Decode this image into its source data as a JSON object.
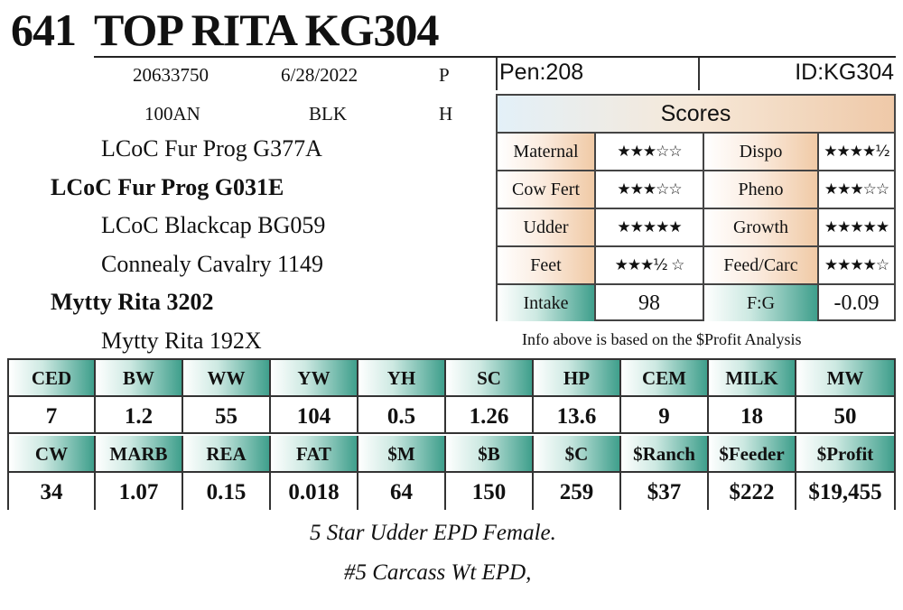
{
  "header": {
    "lot_number": "641",
    "name": "TOP RITA KG304"
  },
  "info": {
    "reg_number": "20633750",
    "birth_date": "6/28/2022",
    "polled": "P",
    "tattoo": "100AN",
    "color": "BLK",
    "sex": "H"
  },
  "pedigree": [
    {
      "text": "LCoC Fur Prog G377A",
      "bold": false
    },
    {
      "text": "LCoC Fur Prog G031E",
      "bold": true
    },
    {
      "text": "LCoC Blackcap BG059",
      "bold": false
    },
    {
      "text": "Connealy Cavalry 1149",
      "bold": false
    },
    {
      "text": "Mytty Rita 3202",
      "bold": true
    },
    {
      "text": "Mytty Rita 192X",
      "bold": false
    }
  ],
  "pen": "Pen:208",
  "id_label": "ID:KG304",
  "scores": {
    "title": "Scores",
    "rows": [
      {
        "label1": "Maternal",
        "stars1": "★★★☆☆",
        "label2": "Dispo",
        "stars2": "★★★★½"
      },
      {
        "label1": "Cow Fert",
        "stars1": "★★★☆☆",
        "label2": "Pheno",
        "stars2": "★★★☆☆"
      },
      {
        "label1": "Udder",
        "stars1": "★★★★★",
        "label2": "Growth",
        "stars2": "★★★★★"
      },
      {
        "label1": "Feet",
        "stars1": "★★★½ ☆",
        "label2": "Feed/Carc",
        "stars2": "★★★★☆"
      }
    ],
    "intake_label": "Intake",
    "intake_value": "98",
    "fg_label": "F:G",
    "fg_value": "-0.09"
  },
  "analysis_note": "Info above is based on the $Profit Analysis",
  "epd": {
    "row1_headers": [
      "CED",
      "BW",
      "WW",
      "YW",
      "YH",
      "SC",
      "HP",
      "CEM",
      "MILK",
      "MW"
    ],
    "row1_values": [
      "7",
      "1.2",
      "55",
      "104",
      "0.5",
      "1.26",
      "13.6",
      "9",
      "18",
      "50"
    ],
    "row2_headers": [
      "CW",
      "MARB",
      "REA",
      "FAT",
      "$M",
      "$B",
      "$C",
      "$Ranch",
      "$Feeder",
      "$Profit"
    ],
    "row2_values": [
      "34",
      "1.07",
      "0.15",
      "0.018",
      "64",
      "150",
      "259",
      "$37",
      "$222",
      "$19,455"
    ]
  },
  "remarks": [
    "5 Star Udder EPD Female.",
    "#5 Carcass Wt EPD,"
  ]
}
